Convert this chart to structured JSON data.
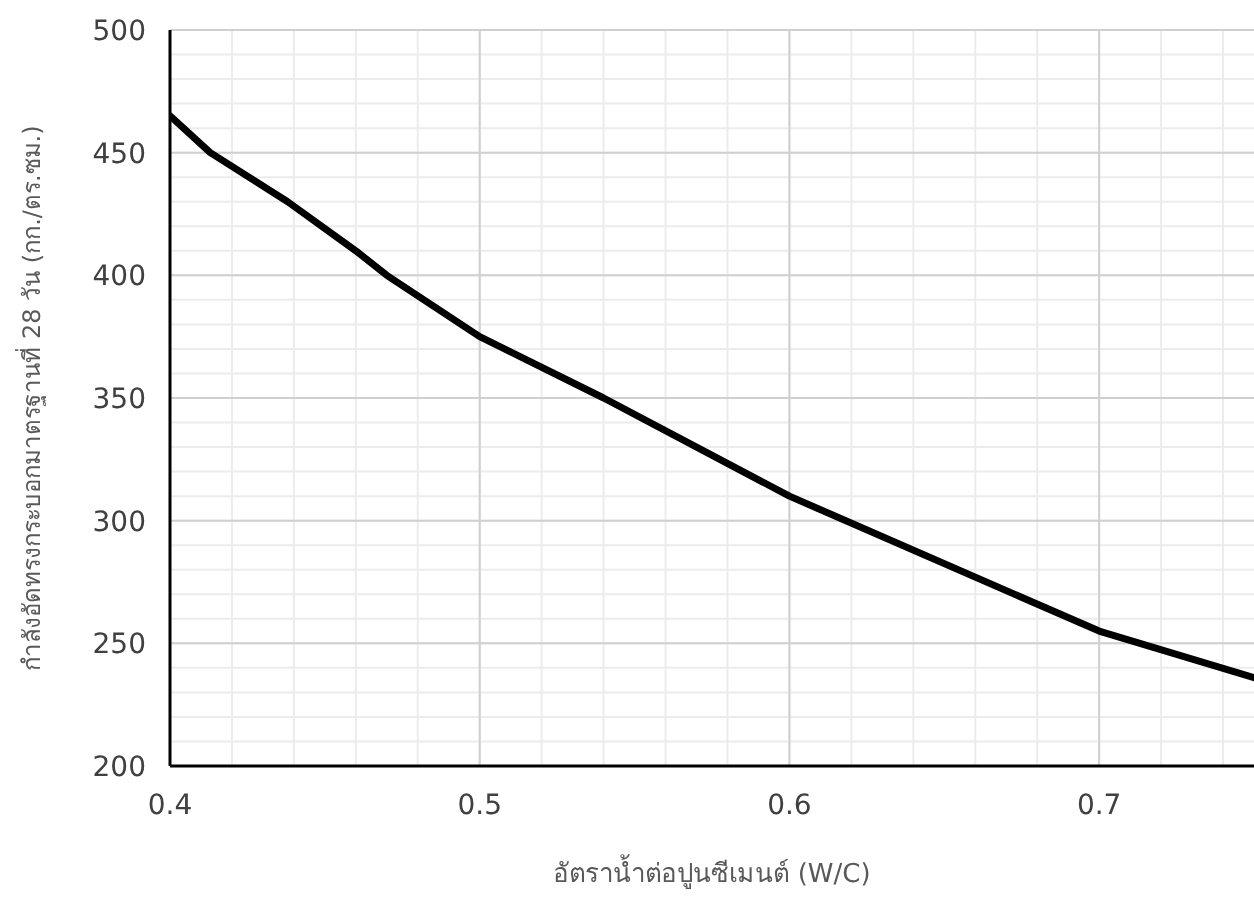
{
  "chart_data": {
    "type": "line",
    "xlabel": "อัตราน้ำต่อปูนซีเมนต์ (W/C)",
    "ylabel": "กำลังอัดทรงกระบอกมาตรฐานที่ 28 วัน (กก./ตร.ซม.)",
    "x": [
      0.4,
      0.413,
      0.438,
      0.46,
      0.47,
      0.5,
      0.54,
      0.6,
      0.7,
      0.75
    ],
    "series": [
      {
        "color": "#000000",
        "values": [
          465,
          450,
          430,
          410,
          400,
          375,
          350,
          310,
          255,
          236
        ]
      }
    ],
    "xlim": [
      0.4,
      0.75
    ],
    "xticks": [
      0.4,
      0.5,
      0.6,
      0.7
    ],
    "ylim": [
      200,
      500
    ],
    "yticks": [
      200,
      250,
      300,
      350,
      400,
      450,
      500
    ],
    "grid": true,
    "marker": "none",
    "line_style": "solid"
  }
}
